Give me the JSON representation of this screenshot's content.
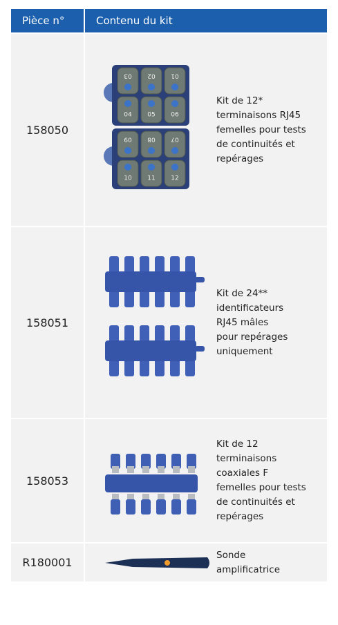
{
  "table": {
    "header": [
      "Pièce n°",
      "Contenu du kit"
    ],
    "rows": [
      {
        "part": "158050",
        "description": [
          "Kit de 12*",
          "terminaisons RJ45",
          "femelles pour tests",
          "de continuités et",
          "repérages"
        ],
        "terminal_labels": [
          "03",
          "02",
          "01",
          "04",
          "05",
          "06",
          "09",
          "08",
          "07",
          "10",
          "11",
          "12"
        ]
      },
      {
        "part": "158051",
        "description": [
          "Kit de 24**",
          "identificateurs",
          "RJ45 mâles",
          "pour repérages",
          "uniquement"
        ]
      },
      {
        "part": "158053",
        "description": [
          "Kit de 12",
          "terminaisons",
          "coaxiales F",
          "femelles pour tests",
          "de continuités et",
          "repérages"
        ]
      },
      {
        "part": "R180001",
        "description": [
          "Sonde",
          "amplificatrice"
        ]
      }
    ]
  }
}
